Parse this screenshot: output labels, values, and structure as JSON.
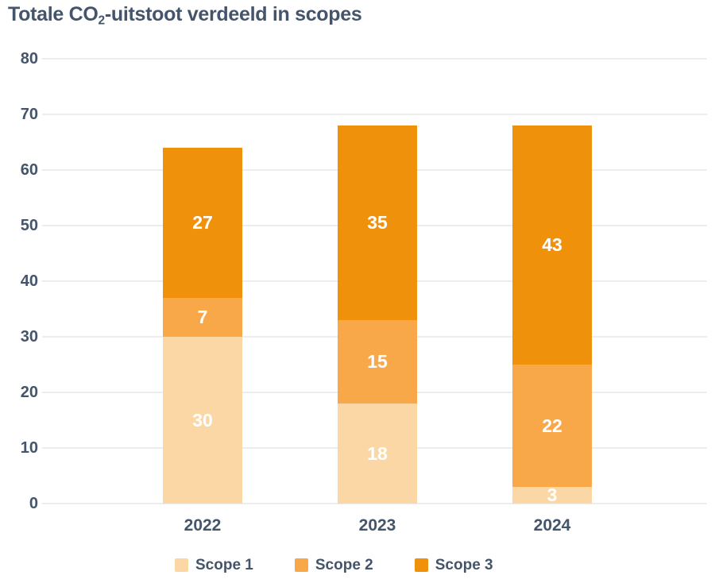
{
  "title": {
    "part1": "Totale CO",
    "sub": "2",
    "part2": "-uitstoot verdeeld in scopes",
    "full": "Totale CO₂-uitstoot verdeeld in scopes"
  },
  "colors": {
    "text": "#44546A",
    "gridline": "#EDEDED",
    "value_label": "#FFFFFF",
    "background": "#FFFFFF",
    "scope1": "#FAD7A4",
    "scope2": "#F8A848",
    "scope3": "#F0910B"
  },
  "chart_data": {
    "type": "bar",
    "stacked": true,
    "title": "Totale CO₂-uitstoot verdeeld in scopes",
    "categories": [
      "2022",
      "2023",
      "2024"
    ],
    "series": [
      {
        "name": "Scope 1",
        "color": "#FAD7A4",
        "values": [
          30,
          18,
          3
        ]
      },
      {
        "name": "Scope 2",
        "color": "#F8A848",
        "values": [
          7,
          15,
          22
        ]
      },
      {
        "name": "Scope 3",
        "color": "#F0910B",
        "values": [
          27,
          35,
          43
        ]
      }
    ],
    "ylim": [
      0,
      80
    ],
    "yticks": [
      0,
      10,
      20,
      30,
      40,
      50,
      60,
      70,
      80
    ],
    "xlabel": "",
    "ylabel": "",
    "grid": true,
    "value_labels": true,
    "legend_position": "bottom"
  }
}
